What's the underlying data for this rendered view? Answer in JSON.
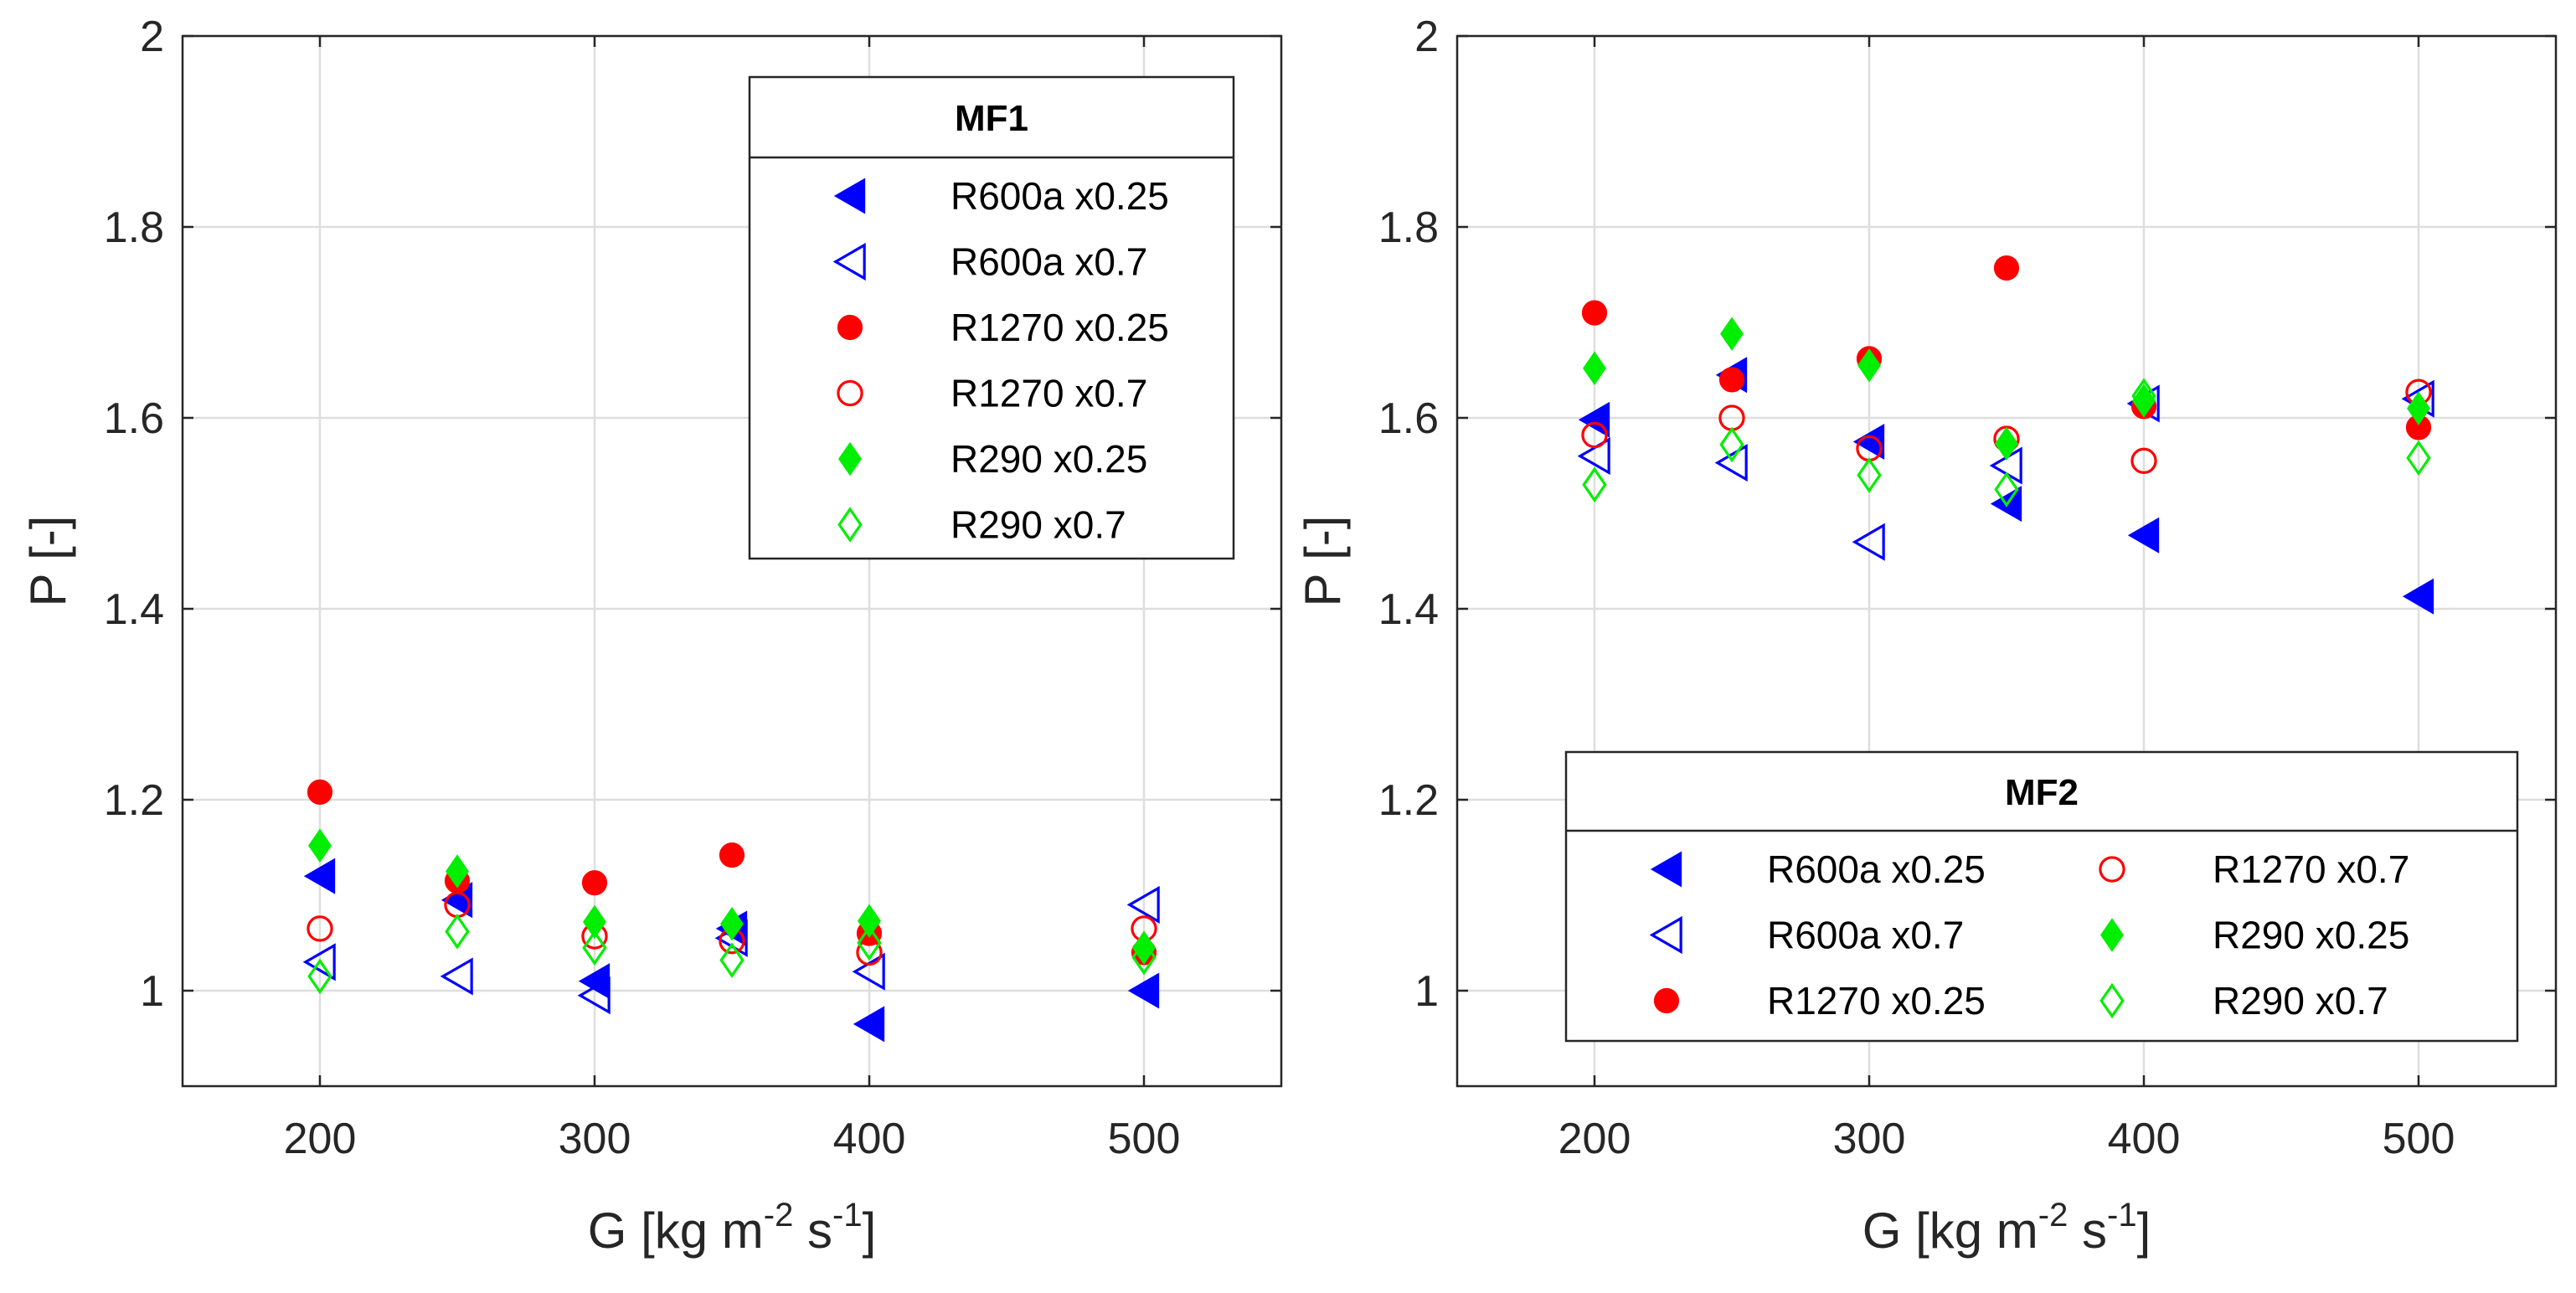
{
  "chart_data": [
    {
      "type": "scatter",
      "legend_title": "MF1",
      "legend_position": "top-right",
      "legend_columns": 1,
      "xlabel": {
        "main": "G [kg m",
        "exp1": "-2",
        "mid": " s",
        "exp2": "-1",
        "end": "]"
      },
      "ylabel": "P [-]",
      "xlim": [
        150,
        550
      ],
      "ylim": [
        0.9,
        2.0
      ],
      "xticks": [
        "200",
        "300",
        "400",
        "500"
      ],
      "yticks": [
        "1",
        "1.2",
        "1.4",
        "1.6",
        "1.8",
        "2"
      ],
      "grid": true,
      "series": [
        {
          "name": "R600a x0.25",
          "color": "#0000ff",
          "marker": "triangle-left",
          "filled": true,
          "x": [
            200,
            250,
            300,
            350,
            400,
            500
          ],
          "y": [
            1.12,
            1.095,
            1.01,
            1.065,
            0.965,
            1.0
          ]
        },
        {
          "name": "R600a x0.7",
          "color": "#0000ff",
          "marker": "triangle-left",
          "filled": false,
          "x": [
            200,
            250,
            300,
            350,
            400,
            500
          ],
          "y": [
            1.03,
            1.015,
            0.995,
            1.055,
            1.02,
            1.09
          ]
        },
        {
          "name": "R1270 x0.25",
          "color": "#ff0000",
          "marker": "circle",
          "filled": true,
          "x": [
            200,
            250,
            300,
            350,
            400,
            500
          ],
          "y": [
            1.208,
            1.115,
            1.113,
            1.142,
            1.06,
            1.04
          ]
        },
        {
          "name": "R1270 x0.7",
          "color": "#ff0000",
          "marker": "circle",
          "filled": false,
          "x": [
            200,
            250,
            300,
            350,
            400,
            500
          ],
          "y": [
            1.065,
            1.09,
            1.057,
            1.052,
            1.04,
            1.065
          ]
        },
        {
          "name": "R290 x0.25",
          "color": "#00ee00",
          "marker": "diamond",
          "filled": true,
          "x": [
            200,
            250,
            300,
            350,
            400,
            500
          ],
          "y": [
            1.152,
            1.125,
            1.072,
            1.07,
            1.073,
            1.045
          ]
        },
        {
          "name": "R290 x0.7",
          "color": "#00ee00",
          "marker": "diamond",
          "filled": false,
          "x": [
            200,
            250,
            300,
            350,
            400,
            500
          ],
          "y": [
            1.015,
            1.062,
            1.045,
            1.032,
            1.05,
            1.035
          ]
        }
      ]
    },
    {
      "type": "scatter",
      "legend_title": "MF2",
      "legend_position": "bottom-right",
      "legend_columns": 2,
      "xlabel": {
        "main": "G [kg m",
        "exp1": "-2",
        "mid": " s",
        "exp2": "-1",
        "end": "]"
      },
      "ylabel": "P [-]",
      "xlim": [
        150,
        550
      ],
      "ylim": [
        0.9,
        2.0
      ],
      "xticks": [
        "200",
        "300",
        "400",
        "500"
      ],
      "yticks": [
        "1",
        "1.2",
        "1.4",
        "1.6",
        "1.8",
        "2"
      ],
      "grid": true,
      "series": [
        {
          "name": "R600a x0.25",
          "color": "#0000ff",
          "marker": "triangle-left",
          "filled": true,
          "x": [
            200,
            250,
            300,
            350,
            400,
            500
          ],
          "y": [
            1.598,
            1.645,
            1.575,
            1.51,
            1.477,
            1.413
          ]
        },
        {
          "name": "R600a x0.7",
          "color": "#0000ff",
          "marker": "triangle-left",
          "filled": false,
          "x": [
            200,
            250,
            300,
            350,
            400,
            500
          ],
          "y": [
            1.56,
            1.553,
            1.47,
            1.55,
            1.615,
            1.62
          ]
        },
        {
          "name": "R1270 x0.25",
          "color": "#ff0000",
          "marker": "circle",
          "filled": true,
          "x": [
            200,
            250,
            300,
            350,
            400,
            500
          ],
          "y": [
            1.71,
            1.64,
            1.662,
            1.757,
            1.612,
            1.59
          ]
        },
        {
          "name": "R1270 x0.7",
          "color": "#ff0000",
          "marker": "circle",
          "filled": false,
          "x": [
            200,
            250,
            300,
            350,
            400,
            500
          ],
          "y": [
            1.582,
            1.6,
            1.568,
            1.578,
            1.555,
            1.627
          ]
        },
        {
          "name": "R290 x0.25",
          "color": "#00ee00",
          "marker": "diamond",
          "filled": true,
          "x": [
            200,
            250,
            300,
            350,
            400,
            500
          ],
          "y": [
            1.652,
            1.688,
            1.655,
            1.573,
            1.618,
            1.61
          ]
        },
        {
          "name": "R290 x0.7",
          "color": "#00ee00",
          "marker": "diamond",
          "filled": false,
          "x": [
            200,
            250,
            300,
            350,
            400,
            500
          ],
          "y": [
            1.53,
            1.572,
            1.54,
            1.525,
            1.623,
            1.558
          ]
        }
      ]
    }
  ]
}
